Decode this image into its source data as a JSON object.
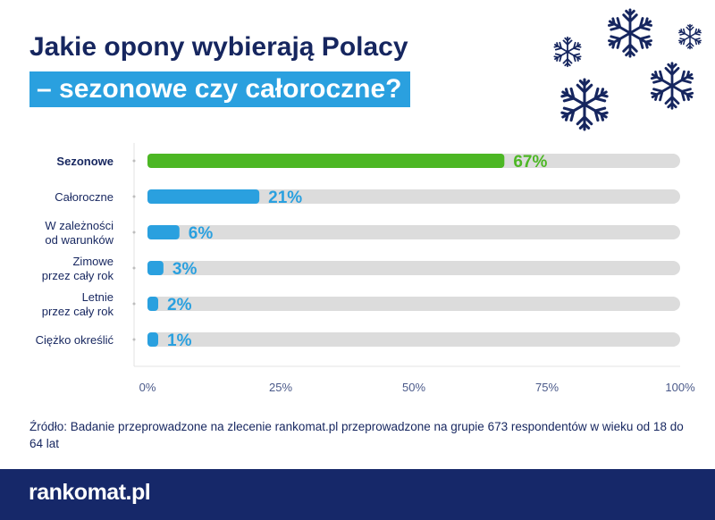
{
  "title": {
    "line1": "Jakie opony wybierają Polacy",
    "line2": "– sezonowe czy całoroczne?"
  },
  "chart_data": {
    "type": "bar",
    "orientation": "horizontal",
    "categories": [
      [
        "Sezonowe"
      ],
      [
        "Całoroczne"
      ],
      [
        "W zależności",
        "od warunków"
      ],
      [
        "Zimowe",
        "przez cały rok"
      ],
      [
        "Letnie",
        "przez cały rok"
      ],
      [
        "Ciężko określić"
      ]
    ],
    "values": [
      67,
      21,
      6,
      3,
      2,
      1
    ],
    "value_labels": [
      "67%",
      "21%",
      "6%",
      "3%",
      "2%",
      "1%"
    ],
    "xlim": [
      0,
      100
    ],
    "xticks": [
      "0%",
      "25%",
      "50%",
      "75%",
      "100%"
    ],
    "highlight_index": 0,
    "colors": {
      "highlight": "#4cb724",
      "bar": "#2aa0df",
      "track": "#dcdcdc",
      "text": "#16265f"
    }
  },
  "source": "Źródło: Badanie przeprowadzone na zlecenie rankomat.pl przeprowadzone na grupie 673 respondentów w wieku od 18 do 64 lat",
  "footer": {
    "brand": "rankomat.pl"
  },
  "decor": {
    "icon": "snowflake-icon",
    "color": "#16265f"
  }
}
